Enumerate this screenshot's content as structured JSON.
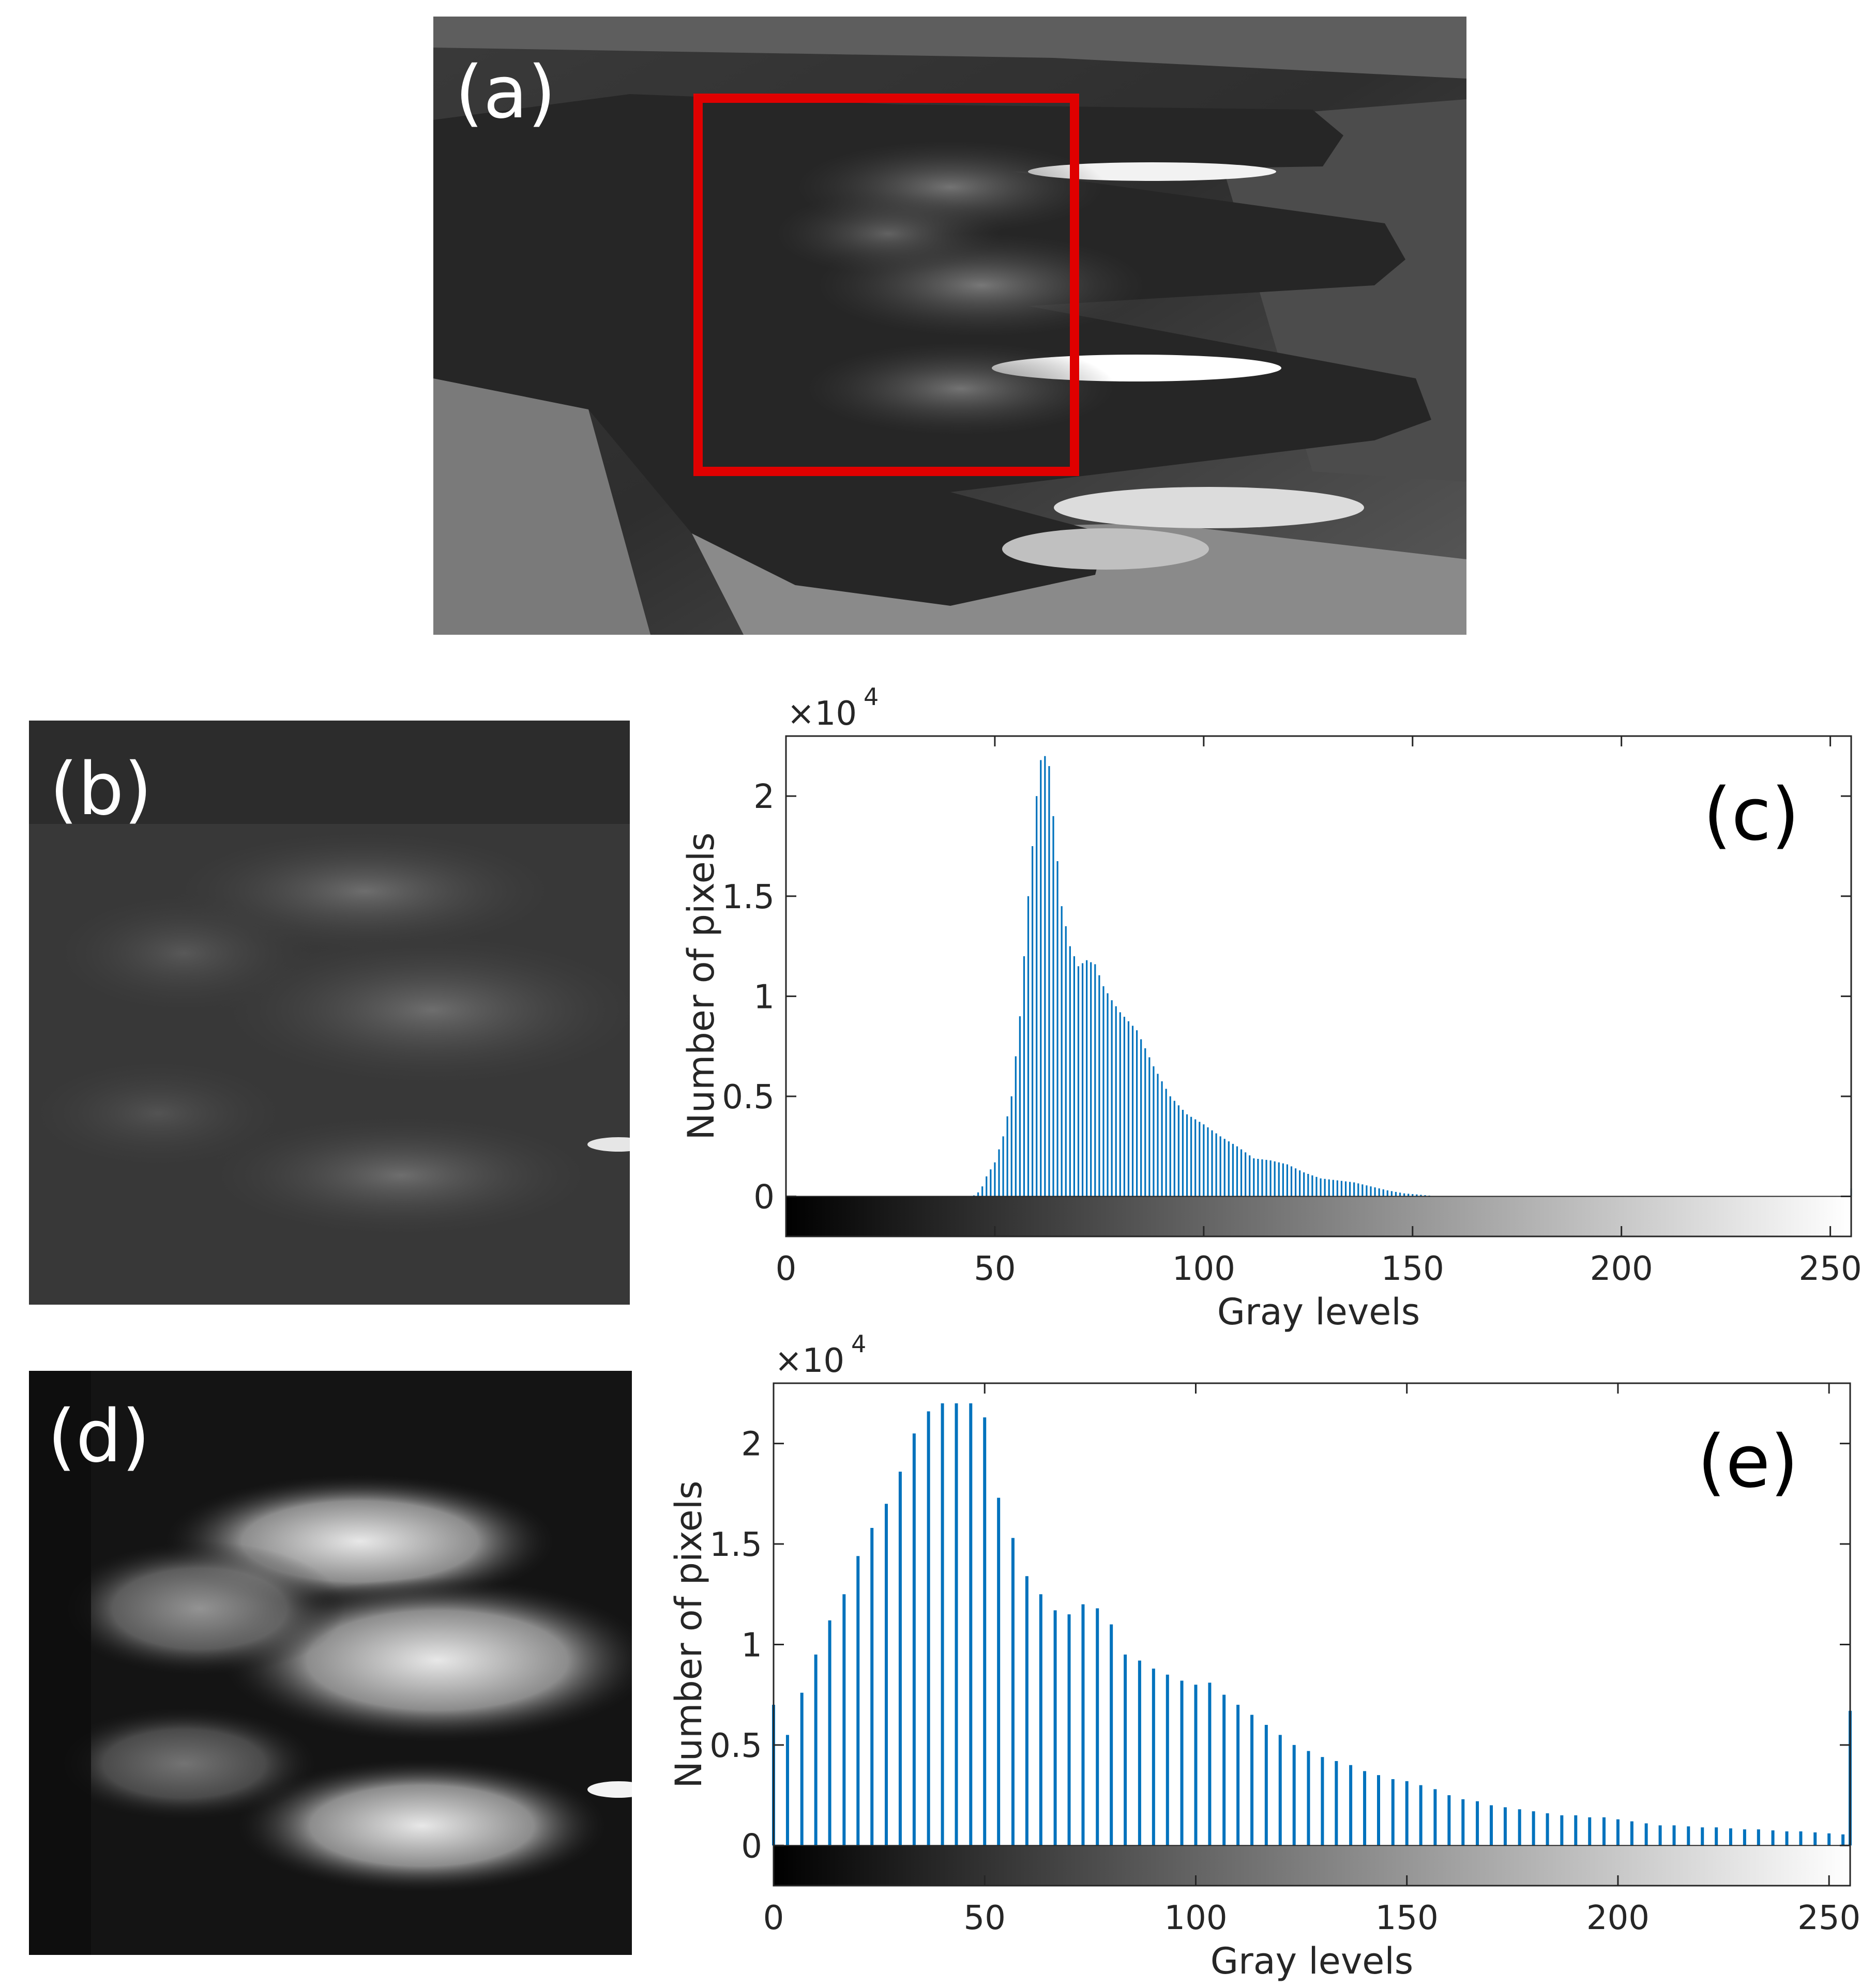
{
  "panels": {
    "a": {
      "label": "(a)"
    },
    "b": {
      "label": "(b)"
    },
    "d": {
      "label": "(d)"
    }
  },
  "chart_data": [
    {
      "type": "bar",
      "panel_label": "(c)",
      "xlabel": "Gray levels",
      "ylabel": "Number of pixels",
      "multiplier_label": "×10",
      "multiplier_exp": "4",
      "xlim": [
        0,
        255
      ],
      "ylim": [
        -0.2,
        2.3
      ],
      "xticks": [
        0,
        50,
        100,
        150,
        200,
        250
      ],
      "yticks": [
        0,
        0.5,
        1,
        1.5,
        2
      ],
      "ytick_labels": [
        "0",
        "0.5",
        "1",
        "1.5",
        "2"
      ],
      "colorbar": "gray 0-255 below axis",
      "bar_color": "#0072BD",
      "bin_step": 1,
      "anchors": [
        [
          44,
          0
        ],
        [
          45,
          0.05
        ],
        [
          46,
          0.2
        ],
        [
          47,
          0.5
        ],
        [
          48,
          1.0
        ],
        [
          50,
          1.7
        ],
        [
          52,
          3.0
        ],
        [
          54,
          5.0
        ],
        [
          56,
          9.0
        ],
        [
          58,
          15.0
        ],
        [
          60,
          20.0
        ],
        [
          61,
          21.8
        ],
        [
          62,
          22.0
        ],
        [
          63,
          21.5
        ],
        [
          64,
          19.0
        ],
        [
          66,
          14.5
        ],
        [
          68,
          12.5
        ],
        [
          70,
          11.5
        ],
        [
          72,
          11.8
        ],
        [
          74,
          11.6
        ],
        [
          76,
          10.5
        ],
        [
          78,
          9.8
        ],
        [
          80,
          9.2
        ],
        [
          84,
          8.3
        ],
        [
          88,
          6.5
        ],
        [
          92,
          5.0
        ],
        [
          96,
          4.1
        ],
        [
          100,
          3.6
        ],
        [
          104,
          3.0
        ],
        [
          108,
          2.5
        ],
        [
          112,
          1.9
        ],
        [
          116,
          1.8
        ],
        [
          120,
          1.6
        ],
        [
          124,
          1.2
        ],
        [
          128,
          0.9
        ],
        [
          132,
          0.8
        ],
        [
          136,
          0.7
        ],
        [
          140,
          0.5
        ],
        [
          144,
          0.3
        ],
        [
          148,
          0.15
        ],
        [
          152,
          0.08
        ],
        [
          156,
          0
        ],
        [
          255,
          0
        ]
      ],
      "end_spikes": [
        [
          255,
          0.4
        ]
      ]
    },
    {
      "type": "bar",
      "panel_label": "(e)",
      "xlabel": "Gray levels",
      "ylabel": "Number of pixels",
      "multiplier_label": "×10",
      "multiplier_exp": "4",
      "xlim": [
        0,
        255
      ],
      "ylim": [
        -0.2,
        2.3
      ],
      "xticks": [
        0,
        50,
        100,
        150,
        200,
        250
      ],
      "yticks": [
        0,
        0.5,
        1,
        1.5,
        2
      ],
      "ytick_labels": [
        "0",
        "0.5",
        "1",
        "1.5",
        "2"
      ],
      "colorbar": "gray 0-255 below axis",
      "bar_color": "#0072BD",
      "bin_step": 3.33,
      "bins": [
        [
          0,
          7.0
        ],
        [
          3.3,
          5.5
        ],
        [
          6.7,
          7.6
        ],
        [
          10,
          9.5
        ],
        [
          13.3,
          11.2
        ],
        [
          16.7,
          12.5
        ],
        [
          20,
          14.4
        ],
        [
          23.3,
          15.8
        ],
        [
          26.7,
          17.0
        ],
        [
          30,
          18.6
        ],
        [
          33.3,
          20.5
        ],
        [
          36.7,
          21.6
        ],
        [
          40,
          22.0
        ],
        [
          43.3,
          22.0
        ],
        [
          46.7,
          22.0
        ],
        [
          50,
          21.3
        ],
        [
          53.3,
          17.3
        ],
        [
          56.7,
          15.3
        ],
        [
          60,
          13.4
        ],
        [
          63.3,
          12.5
        ],
        [
          66.7,
          11.7
        ],
        [
          70,
          11.5
        ],
        [
          73.3,
          12.0
        ],
        [
          76.7,
          11.8
        ],
        [
          80,
          11.0
        ],
        [
          83.3,
          9.5
        ],
        [
          86.7,
          9.2
        ],
        [
          90,
          8.8
        ],
        [
          93.3,
          8.5
        ],
        [
          96.7,
          8.2
        ],
        [
          100,
          8.0
        ],
        [
          103.3,
          8.1
        ],
        [
          106.7,
          7.5
        ],
        [
          110,
          7.0
        ],
        [
          113.3,
          6.5
        ],
        [
          116.7,
          6.0
        ],
        [
          120,
          5.5
        ],
        [
          123.3,
          5.0
        ],
        [
          126.7,
          4.7
        ],
        [
          130,
          4.4
        ],
        [
          133.3,
          4.2
        ],
        [
          136.7,
          4.0
        ],
        [
          140,
          3.7
        ],
        [
          143.3,
          3.5
        ],
        [
          146.7,
          3.3
        ],
        [
          150,
          3.2
        ],
        [
          153.3,
          3.0
        ],
        [
          156.7,
          2.8
        ],
        [
          160,
          2.5
        ],
        [
          163.3,
          2.3
        ],
        [
          166.7,
          2.2
        ],
        [
          170,
          2.0
        ],
        [
          173.3,
          1.9
        ],
        [
          176.7,
          1.8
        ],
        [
          180,
          1.7
        ],
        [
          183.3,
          1.6
        ],
        [
          186.7,
          1.5
        ],
        [
          190,
          1.5
        ],
        [
          193.3,
          1.4
        ],
        [
          196.7,
          1.4
        ],
        [
          200,
          1.3
        ],
        [
          203.3,
          1.2
        ],
        [
          206.7,
          1.1
        ],
        [
          210,
          1.0
        ],
        [
          213.3,
          1.0
        ],
        [
          216.7,
          0.95
        ],
        [
          220,
          0.9
        ],
        [
          223.3,
          0.9
        ],
        [
          226.7,
          0.85
        ],
        [
          230,
          0.8
        ],
        [
          233.3,
          0.8
        ],
        [
          236.7,
          0.75
        ],
        [
          240,
          0.7
        ],
        [
          243.3,
          0.7
        ],
        [
          246.7,
          0.65
        ],
        [
          250,
          0.6
        ],
        [
          253.3,
          0.55
        ],
        [
          255,
          6.7
        ]
      ]
    }
  ],
  "colors": {
    "roi_box": "#E00000",
    "bar": "#0072BD",
    "axis": "#262626"
  }
}
